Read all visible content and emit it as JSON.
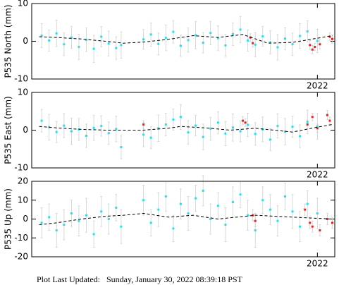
{
  "chart_data": [
    {
      "type": "scatter",
      "ylabel": "P535 North (mm)",
      "xlim": [
        2020.85,
        2022.07
      ],
      "ylim": [
        -10,
        10
      ],
      "yticks": [
        -10,
        0,
        10
      ],
      "xticks": [
        2022
      ],
      "grid": false,
      "series": [
        {
          "color": "#22e2f2",
          "error_color": "#cfcfcf",
          "x": [
            2020.89,
            2020.92,
            2020.95,
            2020.98,
            2021.01,
            2021.04,
            2021.07,
            2021.1,
            2021.13,
            2021.16,
            2021.19,
            2021.21,
            2021.3,
            2021.33,
            2021.36,
            2021.39,
            2021.42,
            2021.45,
            2021.48,
            2021.51,
            2021.54,
            2021.57,
            2021.6,
            2021.63,
            2021.66,
            2021.69,
            2021.72,
            2021.75,
            2021.78,
            2021.81,
            2021.84,
            2021.87,
            2021.9,
            2021.93,
            2021.96,
            2022.0
          ],
          "values": [
            1.5,
            0.2,
            2.1,
            -0.8,
            1.0,
            -1.5,
            0.4,
            -2.0,
            1.2,
            -0.6,
            -1.8,
            -1.0,
            0.5,
            1.8,
            -0.7,
            0.9,
            2.5,
            -1.2,
            0.3,
            1.6,
            -0.4,
            2.2,
            0.8,
            -1.1,
            1.9,
            3.1,
            0.2,
            -0.9,
            1.3,
            -0.3,
            -1.6,
            0.7,
            -0.8,
            1.4,
            2.6,
            0.1
          ],
          "errors": [
            3.2,
            2.8,
            3.5,
            3.0,
            2.9,
            3.4,
            3.1,
            3.6,
            2.7,
            3.3,
            3.0,
            3.5,
            2.6,
            3.1,
            2.9,
            3.4,
            3.0,
            2.8,
            3.2,
            3.6,
            2.7,
            3.1,
            3.3,
            2.9,
            3.0,
            3.5,
            2.8,
            3.2,
            2.6,
            3.1,
            3.4,
            2.9,
            3.0,
            3.3,
            2.8,
            3.1
          ]
        },
        {
          "color": "#e82020",
          "error_color": "#cfcfcf",
          "x": [
            2021.73,
            2021.74,
            2021.97,
            2021.98,
            2021.99,
            2022.01,
            2022.05,
            2022.06
          ],
          "values": [
            1.0,
            -0.5,
            -1.0,
            -2.2,
            -1.5,
            -0.8,
            1.2,
            0.6
          ],
          "errors": [
            1.0,
            1.0,
            1.2,
            1.1,
            1.0,
            1.2,
            1.0,
            1.1
          ]
        }
      ],
      "trend": {
        "color": "#000000",
        "x": [
          2020.88,
          2020.95,
          2021.05,
          2021.15,
          2021.22,
          2021.3,
          2021.4,
          2021.5,
          2021.6,
          2021.7,
          2021.8,
          2021.9,
          2022.0,
          2022.06
        ],
        "values": [
          1.2,
          1.0,
          0.6,
          0.0,
          -0.5,
          -0.2,
          0.5,
          1.5,
          1.0,
          1.8,
          -0.5,
          -0.3,
          0.8,
          1.5
        ]
      }
    },
    {
      "type": "scatter",
      "ylabel": "P535 East (mm)",
      "xlim": [
        2020.85,
        2022.07
      ],
      "ylim": [
        -10,
        10
      ],
      "yticks": [
        -10,
        0,
        10
      ],
      "xticks": [
        2022
      ],
      "grid": false,
      "series": [
        {
          "color": "#22e2f2",
          "error_color": "#cfcfcf",
          "x": [
            2020.89,
            2020.92,
            2020.95,
            2020.98,
            2021.01,
            2021.04,
            2021.07,
            2021.1,
            2021.13,
            2021.16,
            2021.19,
            2021.21,
            2021.3,
            2021.33,
            2021.36,
            2021.39,
            2021.42,
            2021.45,
            2021.48,
            2021.51,
            2021.54,
            2021.57,
            2021.6,
            2021.63,
            2021.66,
            2021.69,
            2021.72,
            2021.75,
            2021.78,
            2021.81,
            2021.84,
            2021.87,
            2021.9,
            2021.93,
            2021.96,
            2022.0
          ],
          "values": [
            2.5,
            0.8,
            -0.5,
            1.2,
            -0.3,
            0.2,
            -1.5,
            0.6,
            1.1,
            -0.8,
            0.3,
            -4.5,
            -1.2,
            -2.0,
            0.5,
            1.5,
            2.8,
            3.5,
            -0.6,
            1.2,
            -1.8,
            0.4,
            2.0,
            -0.9,
            0.7,
            -0.3,
            1.4,
            -1.0,
            0.2,
            -2.5,
            1.1,
            -0.4,
            0.9,
            -1.6,
            2.2,
            1.0
          ],
          "errors": [
            3.0,
            3.4,
            2.8,
            3.2,
            3.5,
            2.9,
            3.1,
            3.3,
            2.7,
            3.0,
            3.4,
            3.1,
            3.2,
            2.9,
            3.5,
            3.0,
            2.8,
            3.3,
            3.1,
            2.7,
            3.4,
            3.0,
            2.9,
            3.2,
            3.6,
            2.8,
            3.1,
            3.0,
            3.3,
            2.9,
            3.2,
            3.5,
            2.8,
            3.0,
            3.1,
            3.4
          ]
        },
        {
          "color": "#e82020",
          "error_color": "#cfcfcf",
          "x": [
            2021.3,
            2021.7,
            2021.71,
            2021.96,
            2021.98,
            2022.0,
            2022.04,
            2022.05
          ],
          "values": [
            1.5,
            2.5,
            2.0,
            1.5,
            3.5,
            0.5,
            4.0,
            2.5
          ],
          "errors": [
            1.0,
            1.1,
            1.0,
            1.2,
            1.0,
            1.1,
            1.2,
            1.0
          ]
        }
      ],
      "trend": {
        "color": "#000000",
        "x": [
          2020.88,
          2020.95,
          2021.05,
          2021.15,
          2021.22,
          2021.3,
          2021.4,
          2021.45,
          2021.55,
          2021.65,
          2021.75,
          2021.9,
          2022.0,
          2022.06
        ],
        "values": [
          1.0,
          0.6,
          0.2,
          0.0,
          0.0,
          0.0,
          0.5,
          1.0,
          0.6,
          0.0,
          0.5,
          -0.5,
          0.8,
          1.5
        ]
      }
    },
    {
      "type": "scatter",
      "ylabel": "P535 Up (mm)",
      "xlim": [
        2020.85,
        2022.07
      ],
      "ylim": [
        -20,
        20
      ],
      "yticks": [
        -20,
        -10,
        0,
        10,
        20
      ],
      "xticks": [
        2022
      ],
      "grid": false,
      "series": [
        {
          "color": "#22e2f2",
          "error_color": "#cfcfcf",
          "x": [
            2020.89,
            2020.92,
            2020.95,
            2020.98,
            2021.01,
            2021.04,
            2021.07,
            2021.1,
            2021.13,
            2021.16,
            2021.19,
            2021.21,
            2021.3,
            2021.33,
            2021.36,
            2021.39,
            2021.42,
            2021.45,
            2021.48,
            2021.51,
            2021.54,
            2021.57,
            2021.6,
            2021.63,
            2021.66,
            2021.69,
            2021.72,
            2021.75,
            2021.78,
            2021.81,
            2021.84,
            2021.87,
            2021.9,
            2021.93,
            2021.96,
            2022.0
          ],
          "values": [
            -2,
            1,
            -6,
            -3,
            3,
            -1,
            2,
            -8,
            4,
            0,
            6,
            -4,
            10,
            -2,
            5,
            12,
            -5,
            8,
            3,
            11,
            15,
            0,
            7,
            -3,
            9,
            13,
            2,
            -6,
            10,
            5,
            -1,
            12,
            4,
            -4,
            8,
            3
          ],
          "errors": [
            8,
            7,
            9,
            8,
            7,
            8,
            9,
            7,
            8,
            8,
            7,
            9,
            8,
            7,
            9,
            8,
            7,
            8,
            9,
            7,
            8,
            8,
            7,
            9,
            8,
            7,
            8,
            9,
            7,
            8,
            8,
            7,
            9,
            8,
            7,
            8
          ]
        },
        {
          "color": "#e82020",
          "error_color": "#cfcfcf",
          "x": [
            2021.74,
            2021.75,
            2021.95,
            2021.97,
            2021.98,
            2022.01,
            2022.04,
            2022.06
          ],
          "values": [
            2,
            -1,
            5,
            -2,
            -4,
            -6,
            0,
            -2
          ],
          "errors": [
            3,
            3,
            3,
            3,
            3,
            3,
            3,
            3
          ]
        }
      ],
      "trend": {
        "color": "#000000",
        "x": [
          2020.88,
          2020.95,
          2021.05,
          2021.15,
          2021.22,
          2021.3,
          2021.4,
          2021.5,
          2021.6,
          2021.75,
          2021.9,
          2022.06
        ],
        "values": [
          -3,
          -2,
          0,
          1.5,
          2,
          3,
          1,
          2,
          0,
          2,
          1,
          0
        ]
      }
    }
  ],
  "footer": "Plot Last Updated:   Sunday, January 30, 2022 08:39:18 PST"
}
